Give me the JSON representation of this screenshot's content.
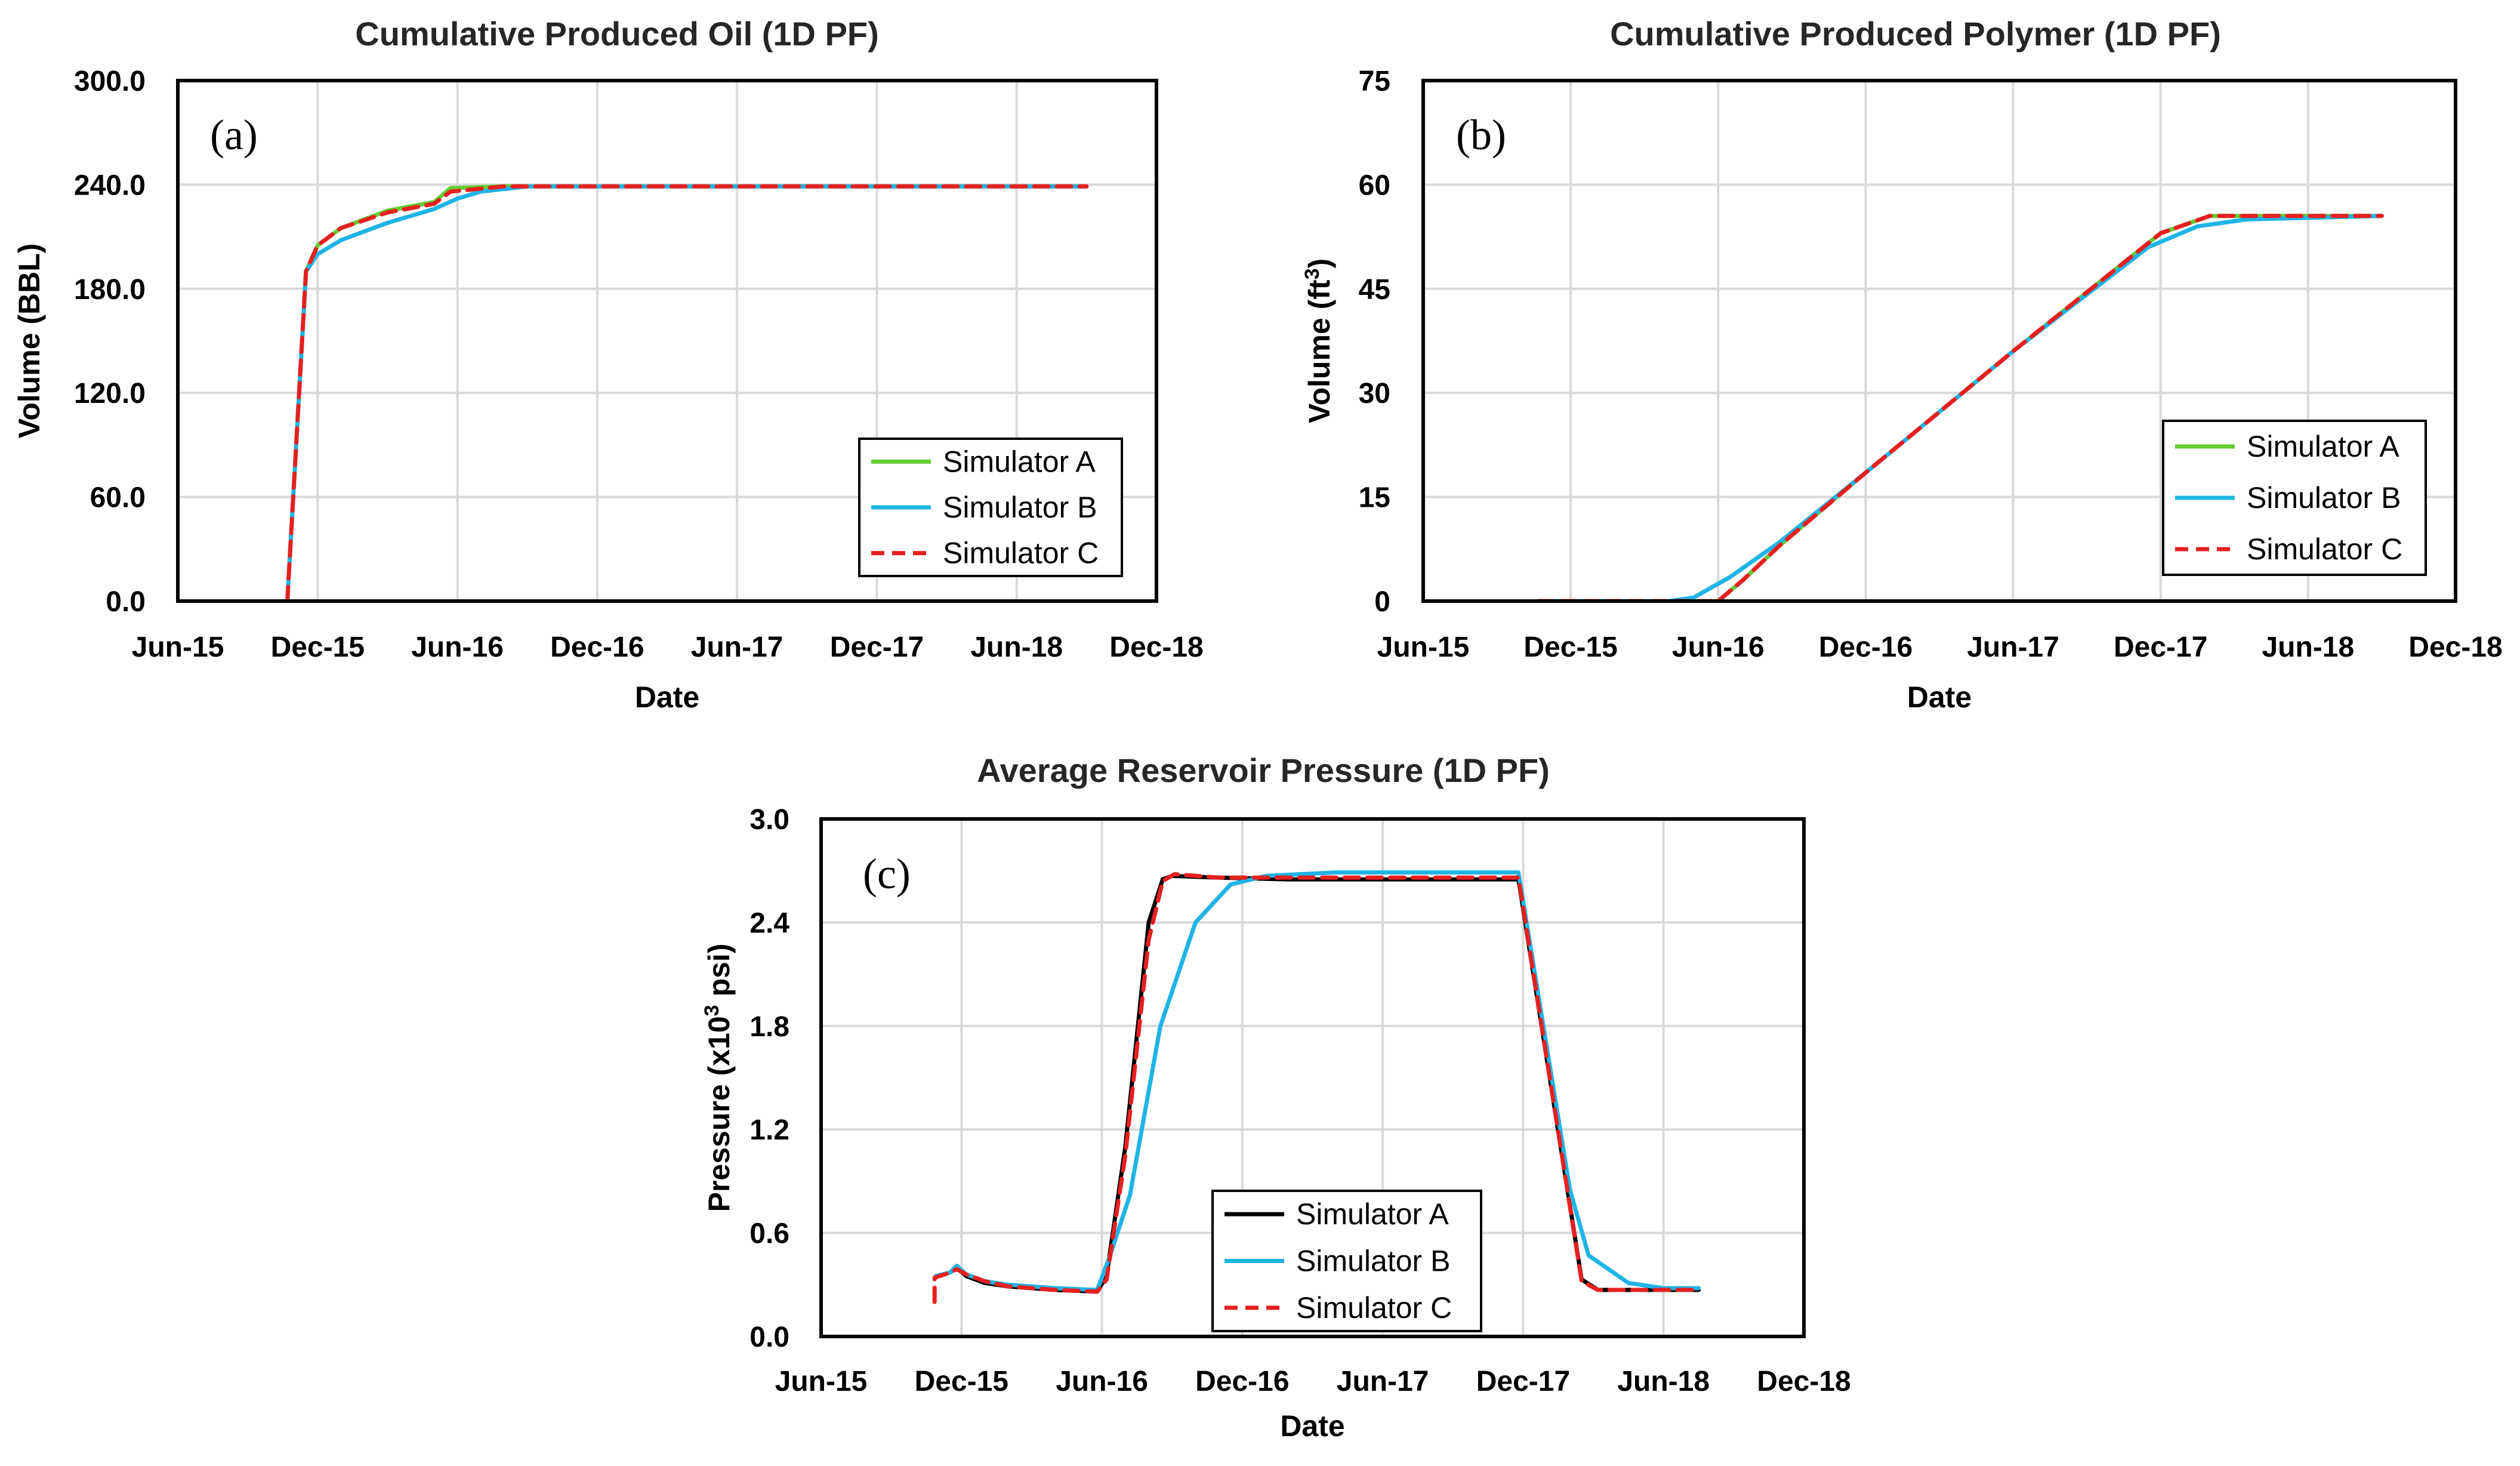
{
  "chart_data": [
    {
      "id": "a",
      "type": "line",
      "title": "Cumulative Produced Oil (1D PF)",
      "panel_label": "(a)",
      "xlabel": "Date",
      "ylabel": "Volume (BBL)",
      "x_ticks": [
        "Jun-15",
        "Dec-15",
        "Jun-16",
        "Dec-16",
        "Jun-17",
        "Dec-17",
        "Jun-18",
        "Dec-18"
      ],
      "xlim": [
        0,
        42
      ],
      "ylim": [
        0,
        300
      ],
      "y_ticks": [
        "0.0",
        "60.0",
        "120.0",
        "180.0",
        "240.0",
        "300.0"
      ],
      "legend_position": "bottom-right",
      "series": [
        {
          "name": "Simulator A",
          "color": "#66cc33",
          "dash": "solid",
          "points": [
            [
              4.7,
              0
            ],
            [
              5.5,
              190
            ],
            [
              6.0,
              205
            ],
            [
              7,
              215
            ],
            [
              9,
              225
            ],
            [
              11,
              230
            ],
            [
              11.7,
              238
            ],
            [
              14,
              239
            ],
            [
              20,
              239
            ],
            [
              30,
              239
            ],
            [
              39,
              239
            ]
          ]
        },
        {
          "name": "Simulator B",
          "color": "#1fb4e6",
          "dash": "solid",
          "points": [
            [
              4.7,
              0
            ],
            [
              5.5,
              190
            ],
            [
              6.0,
              200
            ],
            [
              7,
              208
            ],
            [
              9,
              218
            ],
            [
              11,
              226
            ],
            [
              12,
              232
            ],
            [
              13,
              236
            ],
            [
              15,
              239
            ],
            [
              20,
              239
            ],
            [
              30,
              239
            ],
            [
              39,
              239
            ]
          ]
        },
        {
          "name": "Simulator C",
          "color": "#e62020",
          "dash": "dashed",
          "points": [
            [
              4.7,
              0
            ],
            [
              5.5,
              190
            ],
            [
              6.0,
              205
            ],
            [
              7,
              215
            ],
            [
              9,
              224
            ],
            [
              11,
              229
            ],
            [
              11.7,
              236
            ],
            [
              14,
              239
            ],
            [
              20,
              239
            ],
            [
              30,
              239
            ],
            [
              39,
              239
            ]
          ]
        }
      ]
    },
    {
      "id": "b",
      "type": "line",
      "title": "Cumulative Produced Polymer (1D PF)",
      "panel_label": "(b)",
      "xlabel": "Date",
      "ylabel_parts": [
        "Volume (ft",
        "3",
        ")"
      ],
      "x_ticks": [
        "Jun-15",
        "Dec-15",
        "Jun-16",
        "Dec-16",
        "Jun-17",
        "Dec-17",
        "Jun-18",
        "Dec-18"
      ],
      "xlim": [
        0,
        42
      ],
      "ylim": [
        0,
        75
      ],
      "y_ticks": [
        "0",
        "15",
        "30",
        "45",
        "60",
        "75"
      ],
      "legend_position": "bottom-right",
      "series": [
        {
          "name": "Simulator A",
          "color": "#66cc33",
          "dash": "solid",
          "points": [
            [
              4.7,
              0
            ],
            [
              10,
              0
            ],
            [
              12,
              0
            ],
            [
              13,
              3
            ],
            [
              14.5,
              8
            ],
            [
              18,
              18.5
            ],
            [
              24,
              36
            ],
            [
              30,
              53
            ],
            [
              32,
              55.5
            ],
            [
              39,
              55.5
            ]
          ]
        },
        {
          "name": "Simulator B",
          "color": "#1fb4e6",
          "dash": "solid",
          "points": [
            [
              4.7,
              0
            ],
            [
              10,
              0
            ],
            [
              11,
              0.5
            ],
            [
              12.5,
              3.5
            ],
            [
              14.5,
              8.5
            ],
            [
              18,
              18.5
            ],
            [
              24,
              36
            ],
            [
              29.5,
              51
            ],
            [
              31.5,
              54
            ],
            [
              33.5,
              55
            ],
            [
              39,
              55.5
            ]
          ]
        },
        {
          "name": "Simulator C",
          "color": "#e62020",
          "dash": "dashed",
          "points": [
            [
              4.7,
              0
            ],
            [
              10,
              0
            ],
            [
              12,
              0
            ],
            [
              13,
              3
            ],
            [
              14.5,
              8
            ],
            [
              18,
              18.5
            ],
            [
              24,
              36
            ],
            [
              30,
              53
            ],
            [
              32,
              55.5
            ],
            [
              39,
              55.5
            ]
          ]
        }
      ]
    },
    {
      "id": "c",
      "type": "line",
      "title": "Average Reservoir Pressure (1D PF)",
      "panel_label": "(c)",
      "xlabel": "Date",
      "ylabel_parts": [
        "Pressure (x10",
        "3",
        " psi)"
      ],
      "x_ticks": [
        "Jun-15",
        "Dec-15",
        "Jun-16",
        "Dec-16",
        "Jun-17",
        "Dec-17",
        "Jun-18",
        "Dec-18"
      ],
      "xlim": [
        0,
        42
      ],
      "ylim": [
        0,
        3.0
      ],
      "y_ticks": [
        "0.0",
        "0.6",
        "1.2",
        "1.8",
        "2.4",
        "3.0"
      ],
      "legend_position": "bottom-center",
      "series": [
        {
          "name": "Simulator A",
          "color": "#000000",
          "dash": "solid",
          "points": [
            [
              4.9,
              0.35
            ],
            [
              5.5,
              0.37
            ],
            [
              5.8,
              0.4
            ],
            [
              6.2,
              0.35
            ],
            [
              7,
              0.31
            ],
            [
              8,
              0.29
            ],
            [
              10,
              0.27
            ],
            [
              11.8,
              0.26
            ],
            [
              12.2,
              0.35
            ],
            [
              13,
              1.1
            ],
            [
              14,
              2.4
            ],
            [
              14.6,
              2.65
            ],
            [
              15,
              2.67
            ],
            [
              17,
              2.66
            ],
            [
              20,
              2.65
            ],
            [
              25,
              2.65
            ],
            [
              29.8,
              2.65
            ],
            [
              32.5,
              0.33
            ],
            [
              33.2,
              0.27
            ],
            [
              35,
              0.27
            ],
            [
              37.5,
              0.27
            ]
          ]
        },
        {
          "name": "Simulator B",
          "color": "#1fb4e6",
          "dash": "solid",
          "points": [
            [
              4.9,
              0.35
            ],
            [
              5.5,
              0.37
            ],
            [
              5.8,
              0.41
            ],
            [
              6.2,
              0.36
            ],
            [
              7,
              0.32
            ],
            [
              8,
              0.3
            ],
            [
              10,
              0.28
            ],
            [
              11.8,
              0.27
            ],
            [
              12.3,
              0.45
            ],
            [
              13.2,
              0.82
            ],
            [
              14.5,
              1.8
            ],
            [
              16,
              2.4
            ],
            [
              17.5,
              2.62
            ],
            [
              19,
              2.67
            ],
            [
              22,
              2.69
            ],
            [
              29.8,
              2.69
            ],
            [
              32,
              0.85
            ],
            [
              32.8,
              0.47
            ],
            [
              34.5,
              0.31
            ],
            [
              36,
              0.28
            ],
            [
              37.5,
              0.28
            ]
          ]
        },
        {
          "name": "Simulator C",
          "color": "#e62020",
          "dash": "dashed",
          "points": [
            [
              4.85,
              0.2
            ],
            [
              4.85,
              0.34
            ],
            [
              5.5,
              0.37
            ],
            [
              5.8,
              0.39
            ],
            [
              6.2,
              0.36
            ],
            [
              7,
              0.32
            ],
            [
              8,
              0.29
            ],
            [
              10,
              0.27
            ],
            [
              11.8,
              0.26
            ],
            [
              12.2,
              0.33
            ],
            [
              13,
              1.05
            ],
            [
              14,
              2.3
            ],
            [
              14.6,
              2.64
            ],
            [
              15.1,
              2.68
            ],
            [
              17,
              2.66
            ],
            [
              20,
              2.66
            ],
            [
              25,
              2.66
            ],
            [
              29.8,
              2.66
            ],
            [
              32.5,
              0.32
            ],
            [
              33.2,
              0.27
            ],
            [
              35,
              0.27
            ],
            [
              37.5,
              0.27
            ]
          ]
        }
      ]
    }
  ]
}
